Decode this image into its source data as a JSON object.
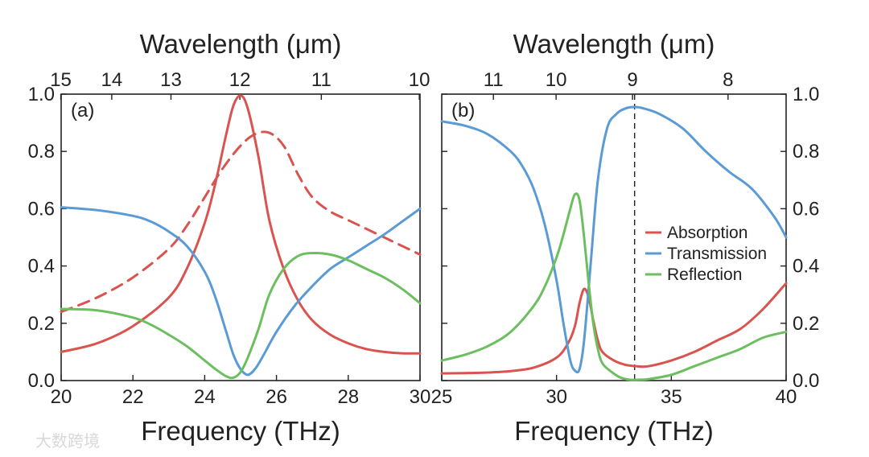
{
  "colors": {
    "absorption": "#d9534f",
    "transmission": "#5b9bd5",
    "reflection": "#6cbf5f",
    "axis": "#222222"
  },
  "watermark": "大数跨境",
  "chart_data": [
    {
      "type": "line",
      "panel_label": "(a)",
      "top_title": "Wavelength (μm)",
      "xlabel": "Frequency (THz)",
      "xlim": [
        20,
        30
      ],
      "ylim": [
        0,
        1
      ],
      "xticks": [
        "20",
        "22",
        "24",
        "26",
        "28",
        "30"
      ],
      "xtick_values": [
        20,
        22,
        24,
        26,
        28,
        30
      ],
      "yticks": [
        "0.0",
        "0.2",
        "0.4",
        "0.6",
        "0.8",
        "1.0"
      ],
      "ytick_values": [
        0,
        0.2,
        0.4,
        0.6,
        0.8,
        1.0
      ],
      "top_ticks": [
        {
          "label": "15",
          "freq": 19.99
        },
        {
          "label": "14",
          "freq": 21.41
        },
        {
          "label": "13",
          "freq": 23.06
        },
        {
          "label": "12",
          "freq": 24.98
        },
        {
          "label": "11",
          "freq": 27.25
        },
        {
          "label": "10",
          "freq": 29.98
        }
      ],
      "series": [
        {
          "name": "Absorption",
          "color_key": "absorption",
          "dashed": false,
          "x": [
            20,
            21,
            22,
            23,
            23.5,
            24,
            24.3,
            24.6,
            24.8,
            25.0,
            25.2,
            25.5,
            25.8,
            26.2,
            26.6,
            27,
            27.5,
            28,
            28.5,
            29,
            29.5,
            30
          ],
          "y": [
            0.1,
            0.13,
            0.19,
            0.29,
            0.39,
            0.55,
            0.69,
            0.86,
            0.96,
            0.995,
            0.95,
            0.78,
            0.56,
            0.39,
            0.28,
            0.21,
            0.16,
            0.13,
            0.11,
            0.1,
            0.095,
            0.095
          ]
        },
        {
          "name": "Absorption (dashed)",
          "color_key": "absorption",
          "dashed": true,
          "x": [
            20,
            21,
            22,
            23,
            23.5,
            24,
            24.5,
            25,
            25.4,
            25.8,
            26.2,
            26.6,
            27,
            27.5,
            28,
            28.5,
            29,
            29.5,
            30
          ],
          "y": [
            0.24,
            0.29,
            0.36,
            0.46,
            0.54,
            0.64,
            0.74,
            0.82,
            0.86,
            0.865,
            0.82,
            0.72,
            0.64,
            0.59,
            0.56,
            0.53,
            0.5,
            0.47,
            0.44
          ]
        },
        {
          "name": "Transmission",
          "color_key": "transmission",
          "dashed": false,
          "x": [
            20,
            21,
            22,
            22.5,
            23,
            23.5,
            24,
            24.3,
            24.6,
            24.8,
            25.0,
            25.2,
            25.4,
            25.6,
            26,
            26.5,
            27,
            27.5,
            28,
            28.5,
            29,
            29.5,
            30
          ],
          "y": [
            0.605,
            0.595,
            0.575,
            0.555,
            0.52,
            0.47,
            0.38,
            0.29,
            0.17,
            0.09,
            0.04,
            0.02,
            0.04,
            0.08,
            0.17,
            0.26,
            0.33,
            0.39,
            0.43,
            0.47,
            0.51,
            0.555,
            0.6
          ]
        },
        {
          "name": "Reflection",
          "color_key": "reflection",
          "dashed": false,
          "x": [
            20,
            21,
            22,
            22.5,
            23,
            23.5,
            24,
            24.3,
            24.6,
            24.8,
            25.0,
            25.2,
            25.5,
            25.8,
            26.2,
            26.6,
            27,
            27.5,
            28,
            28.5,
            29,
            29.5,
            30
          ],
          "y": [
            0.25,
            0.245,
            0.22,
            0.195,
            0.16,
            0.12,
            0.07,
            0.04,
            0.015,
            0.01,
            0.03,
            0.08,
            0.18,
            0.3,
            0.39,
            0.435,
            0.445,
            0.44,
            0.42,
            0.39,
            0.36,
            0.32,
            0.27
          ]
        }
      ]
    },
    {
      "type": "line",
      "panel_label": "(b)",
      "top_title": "Wavelength (μm)",
      "xlabel": "Frequency (THz)",
      "xlim": [
        25,
        40
      ],
      "ylim": [
        0,
        1
      ],
      "xticks": [
        "25",
        "30",
        "35",
        "40"
      ],
      "xtick_values": [
        25,
        30,
        35,
        40
      ],
      "yticks": [
        "0.0",
        "0.2",
        "0.4",
        "0.6",
        "0.8",
        "1.0"
      ],
      "ytick_values": [
        0,
        0.2,
        0.4,
        0.6,
        0.8,
        1.0
      ],
      "top_ticks": [
        {
          "label": "11",
          "freq": 27.25
        },
        {
          "label": "10",
          "freq": 29.98
        },
        {
          "label": "9",
          "freq": 33.31
        },
        {
          "label": "8",
          "freq": 37.47
        }
      ],
      "vline_x": 33.4,
      "legend": [
        "Absorption",
        "Transmission",
        "Reflection"
      ],
      "series": [
        {
          "name": "Absorption",
          "color_key": "absorption",
          "dashed": false,
          "x": [
            25,
            26,
            27,
            28,
            29,
            30,
            30.5,
            30.8,
            31.0,
            31.2,
            31.4,
            31.6,
            31.8,
            32.0,
            32.5,
            33,
            33.5,
            34,
            35,
            36,
            37,
            38,
            39,
            40
          ],
          "y": [
            0.025,
            0.026,
            0.028,
            0.033,
            0.045,
            0.08,
            0.13,
            0.19,
            0.27,
            0.32,
            0.29,
            0.21,
            0.14,
            0.1,
            0.07,
            0.055,
            0.05,
            0.05,
            0.07,
            0.1,
            0.14,
            0.18,
            0.25,
            0.34
          ]
        },
        {
          "name": "Transmission",
          "color_key": "transmission",
          "dashed": false,
          "x": [
            25,
            26,
            27,
            28,
            28.5,
            29,
            29.5,
            30,
            30.3,
            30.6,
            30.8,
            31.0,
            31.2,
            31.5,
            31.8,
            32.2,
            32.6,
            33.0,
            33.4,
            33.8,
            34.5,
            35.5,
            36.5,
            37.5,
            38.5,
            39.5,
            40
          ],
          "y": [
            0.905,
            0.89,
            0.86,
            0.8,
            0.75,
            0.67,
            0.54,
            0.35,
            0.2,
            0.07,
            0.035,
            0.04,
            0.14,
            0.42,
            0.7,
            0.88,
            0.93,
            0.95,
            0.955,
            0.95,
            0.93,
            0.88,
            0.8,
            0.73,
            0.67,
            0.57,
            0.5
          ]
        },
        {
          "name": "Reflection",
          "color_key": "reflection",
          "dashed": false,
          "x": [
            25,
            26,
            27,
            28,
            29,
            29.5,
            30,
            30.3,
            30.6,
            30.8,
            31.0,
            31.2,
            31.4,
            31.6,
            31.8,
            32.0,
            32.4,
            32.8,
            33.2,
            33.6,
            34,
            35,
            36,
            37,
            38,
            39,
            40
          ],
          "y": [
            0.07,
            0.09,
            0.12,
            0.17,
            0.26,
            0.33,
            0.43,
            0.51,
            0.6,
            0.65,
            0.63,
            0.5,
            0.34,
            0.2,
            0.11,
            0.06,
            0.03,
            0.01,
            0.003,
            0.003,
            0.005,
            0.02,
            0.05,
            0.08,
            0.11,
            0.15,
            0.17
          ]
        }
      ]
    }
  ]
}
